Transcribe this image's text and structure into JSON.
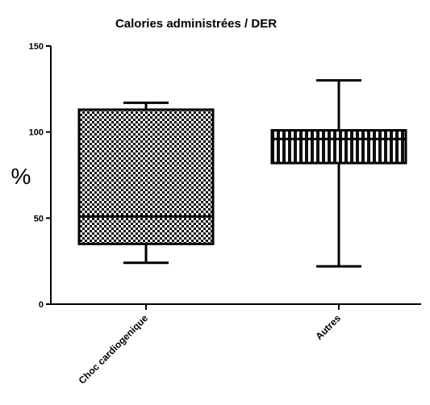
{
  "chart_data": {
    "type": "boxplot",
    "title": "Calories administrées / DER",
    "ylabel": "%",
    "xlabel": "",
    "ylim": [
      0,
      150
    ],
    "yticks": [
      0,
      50,
      100,
      150
    ],
    "grid": false,
    "categories": [
      "Choc cardiogenique",
      "Autres"
    ],
    "boxes": [
      {
        "category": "Choc cardiogenique",
        "min": 24,
        "q1": 35,
        "median": 51,
        "q3": 113,
        "max": 117,
        "pattern": "checkerboard"
      },
      {
        "category": "Autres",
        "min": 22,
        "q1": 82,
        "median": 96,
        "q3": 101,
        "max": 130,
        "pattern": "vertical-stripes"
      }
    ]
  }
}
